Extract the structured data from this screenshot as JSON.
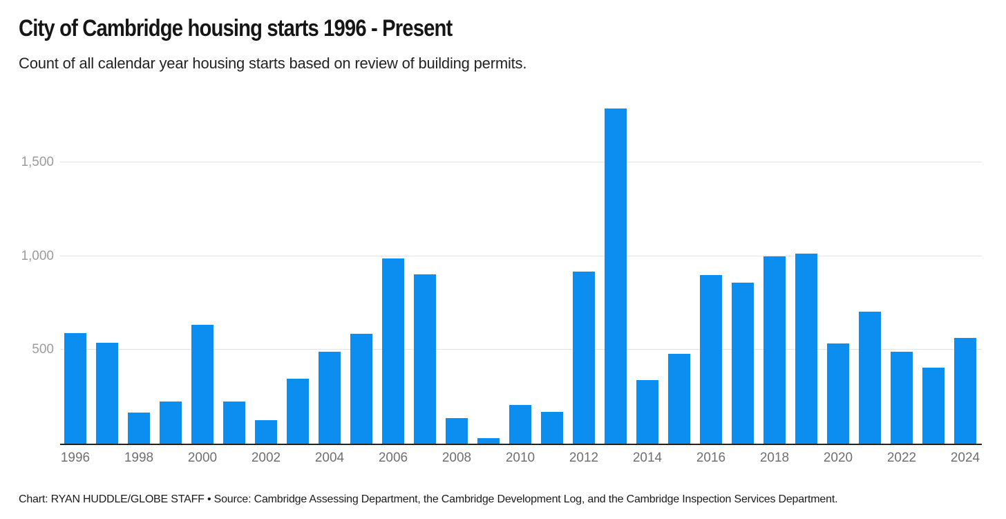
{
  "header": {
    "title": "City of Cambridge housing starts 1996 - Present",
    "subtitle": "Count of all calendar year housing starts based on review of building permits."
  },
  "footer": {
    "credit": "Chart: RYAN HUDDLE/GLOBE STAFF • Source: Cambridge Assessing Department, the Cambridge Development Log, and the Cambridge Inspection Services Department."
  },
  "colors": {
    "bar": "#0b8eef",
    "gridline": "#e2e2e2",
    "axis_line": "#222222",
    "y_tick_text": "#9b9b9b",
    "x_tick_text": "#6f6f6f"
  },
  "chart_data": {
    "type": "bar",
    "title": "City of Cambridge housing starts 1996 - Present",
    "subtitle": "Count of all calendar year housing starts based on review of building permits.",
    "categories": [
      1996,
      1997,
      1998,
      1999,
      2000,
      2001,
      2002,
      2003,
      2004,
      2005,
      2006,
      2007,
      2008,
      2009,
      2010,
      2011,
      2012,
      2013,
      2014,
      2015,
      2016,
      2017,
      2018,
      2019,
      2020,
      2021,
      2022,
      2023,
      2024
    ],
    "values": [
      590,
      540,
      165,
      225,
      635,
      225,
      125,
      345,
      490,
      585,
      990,
      905,
      135,
      30,
      205,
      170,
      920,
      1790,
      340,
      480,
      900,
      860,
      1000,
      1015,
      535,
      705,
      490,
      405,
      565
    ],
    "xlabel": "",
    "ylabel": "",
    "ylim": [
      0,
      1852
    ],
    "grid": true,
    "legend": "none",
    "bar_color": "#0b8eef",
    "y_ticks": [
      {
        "value": 500,
        "label": "500"
      },
      {
        "value": 1000,
        "label": "1,000"
      },
      {
        "value": 1500,
        "label": "1,500"
      }
    ],
    "x_tick_labels": [
      "1996",
      "1998",
      "2000",
      "2002",
      "2004",
      "2006",
      "2008",
      "2010",
      "2012",
      "2014",
      "2016",
      "2018",
      "2020",
      "2022",
      "2024"
    ],
    "source_note": "Chart: RYAN HUDDLE/GLOBE STAFF • Source: Cambridge Assessing Department, the Cambridge Development Log, and the Cambridge Inspection Services Department."
  }
}
